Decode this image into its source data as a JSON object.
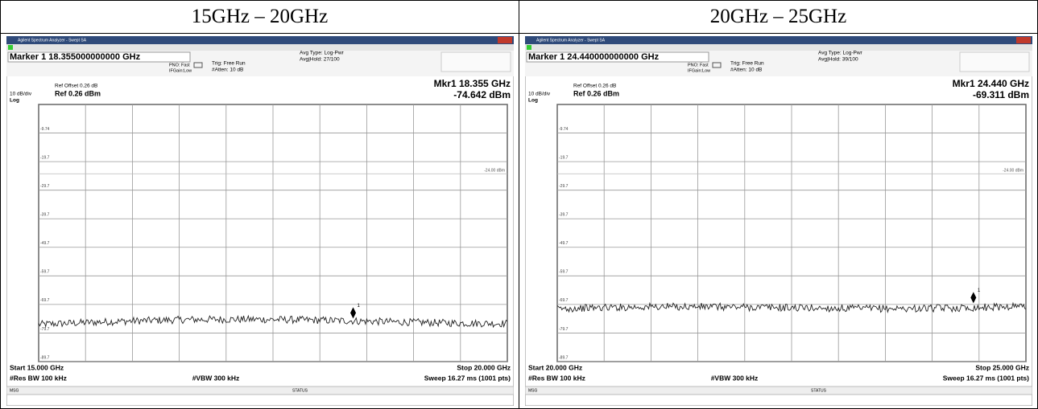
{
  "header": [
    "15GHz – 20GHz",
    "20GHz – 25GHz"
  ],
  "panels": [
    {
      "window_title": "Agilent Spectrum Analyzer - Swept SA",
      "marker_line": "Marker 1 18.355000000000 GHz",
      "pno": "PNO: Fast",
      "ifgain": "IFGain:Low",
      "trig": "Trig: Free Run",
      "atten": "#Atten: 10 dB",
      "avg_type": "Avg Type: Log-Pwr",
      "avg_hold": "Avg|Hold: 27/100",
      "ref_offset": "Ref Offset 0.26 dB",
      "scale": "10 dB/div",
      "ref_level": "Ref 0.26 dBm",
      "scale_type": "Log",
      "mkr_freq": "Mkr1 18.355 GHz",
      "mkr_level": "-74.642 dBm",
      "xlim": [
        15,
        20
      ],
      "ylim": [
        -89.74,
        0.26
      ],
      "yticks": [
        {
          "value": -9.74,
          "label": "-9.74"
        },
        {
          "value": -19.74,
          "label": "-19.7"
        },
        {
          "value": -29.74,
          "label": "-29.7"
        },
        {
          "value": -39.74,
          "label": "-39.7"
        },
        {
          "value": -49.74,
          "label": "-49.7"
        },
        {
          "value": -59.74,
          "label": "-59.7"
        },
        {
          "value": -69.74,
          "label": "-69.7"
        },
        {
          "value": -79.74,
          "label": "-79.7"
        },
        {
          "value": -89.74,
          "label": "-89.7"
        }
      ],
      "display_line": {
        "value": -24,
        "label": "-24.00 dBm"
      },
      "marker": {
        "x": 18.355,
        "y": -74.642,
        "label": "1"
      },
      "start": "Start 15.000 GHz",
      "stop": "Stop 20.000 GHz",
      "rbw": "#Res BW 100 kHz",
      "vbw": "#VBW 300 kHz",
      "sweep": "Sweep  16.27 ms (1001 pts)",
      "msg": "MSG",
      "status": "STATUS"
    },
    {
      "window_title": "Agilent Spectrum Analyzer - Swept SA",
      "marker_line": "Marker 1 24.440000000000 GHz",
      "pno": "PNO: Fast",
      "ifgain": "IFGain:Low",
      "trig": "Trig: Free Run",
      "atten": "#Atten: 10 dB",
      "avg_type": "Avg Type: Log-Pwr",
      "avg_hold": "Avg|Hold: 39/100",
      "ref_offset": "Ref Offset 0.26 dB",
      "scale": "10 dB/div",
      "ref_level": "Ref 0.26 dBm",
      "scale_type": "Log",
      "mkr_freq": "Mkr1 24.440 GHz",
      "mkr_level": "-69.311 dBm",
      "xlim": [
        20,
        25
      ],
      "ylim": [
        -89.74,
        0.26
      ],
      "yticks": [
        {
          "value": -9.74,
          "label": "-9.74"
        },
        {
          "value": -19.74,
          "label": "-19.7"
        },
        {
          "value": -29.74,
          "label": "-29.7"
        },
        {
          "value": -39.74,
          "label": "-39.7"
        },
        {
          "value": -49.74,
          "label": "-49.7"
        },
        {
          "value": -59.74,
          "label": "-59.7"
        },
        {
          "value": -69.74,
          "label": "-69.7"
        },
        {
          "value": -79.74,
          "label": "-79.7"
        },
        {
          "value": -89.74,
          "label": "-89.7"
        }
      ],
      "display_line": {
        "value": -24,
        "label": "-24.00 dBm"
      },
      "marker": {
        "x": 24.44,
        "y": -69.311,
        "label": "1"
      },
      "start": "Start 20.000 GHz",
      "stop": "Stop 25.000 GHz",
      "rbw": "#Res BW 100 kHz",
      "vbw": "#VBW 300 kHz",
      "sweep": "Sweep  16.27 ms (1001 pts)",
      "msg": "MSG",
      "status": "STATUS"
    }
  ]
}
